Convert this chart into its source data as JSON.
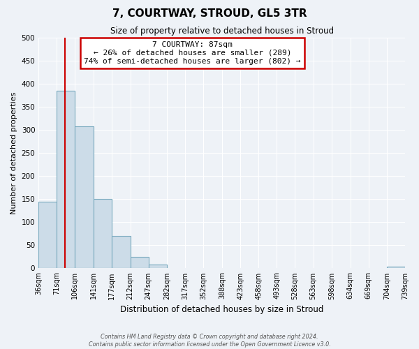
{
  "title": "7, COURTWAY, STROUD, GL5 3TR",
  "subtitle": "Size of property relative to detached houses in Stroud",
  "xlabel": "Distribution of detached houses by size in Stroud",
  "ylabel": "Number of detached properties",
  "bin_edges": [
    36,
    71,
    106,
    141,
    177,
    212,
    247,
    282,
    317,
    352,
    388,
    423,
    458,
    493,
    528,
    563,
    598,
    634,
    669,
    704,
    739
  ],
  "bin_labels": [
    "36sqm",
    "71sqm",
    "106sqm",
    "141sqm",
    "177sqm",
    "212sqm",
    "247sqm",
    "282sqm",
    "317sqm",
    "352sqm",
    "388sqm",
    "423sqm",
    "458sqm",
    "493sqm",
    "528sqm",
    "563sqm",
    "598sqm",
    "634sqm",
    "669sqm",
    "704sqm",
    "739sqm"
  ],
  "bar_heights": [
    144,
    385,
    308,
    150,
    70,
    25,
    8,
    0,
    0,
    0,
    0,
    0,
    0,
    0,
    0,
    0,
    0,
    0,
    0,
    3
  ],
  "bar_color": "#ccdce8",
  "bar_edge_color": "#7aaabf",
  "property_vline_x": 87,
  "vline_color": "#cc0000",
  "ylim": [
    0,
    500
  ],
  "yticks": [
    0,
    50,
    100,
    150,
    200,
    250,
    300,
    350,
    400,
    450,
    500
  ],
  "annotation_box_text": "7 COURTWAY: 87sqm\n← 26% of detached houses are smaller (289)\n74% of semi-detached houses are larger (802) →",
  "annotation_box_color": "#cc0000",
  "background_color": "#eef2f7",
  "grid_color": "#ffffff",
  "footer_line1": "Contains HM Land Registry data © Crown copyright and database right 2024.",
  "footer_line2": "Contains public sector information licensed under the Open Government Licence v3.0."
}
